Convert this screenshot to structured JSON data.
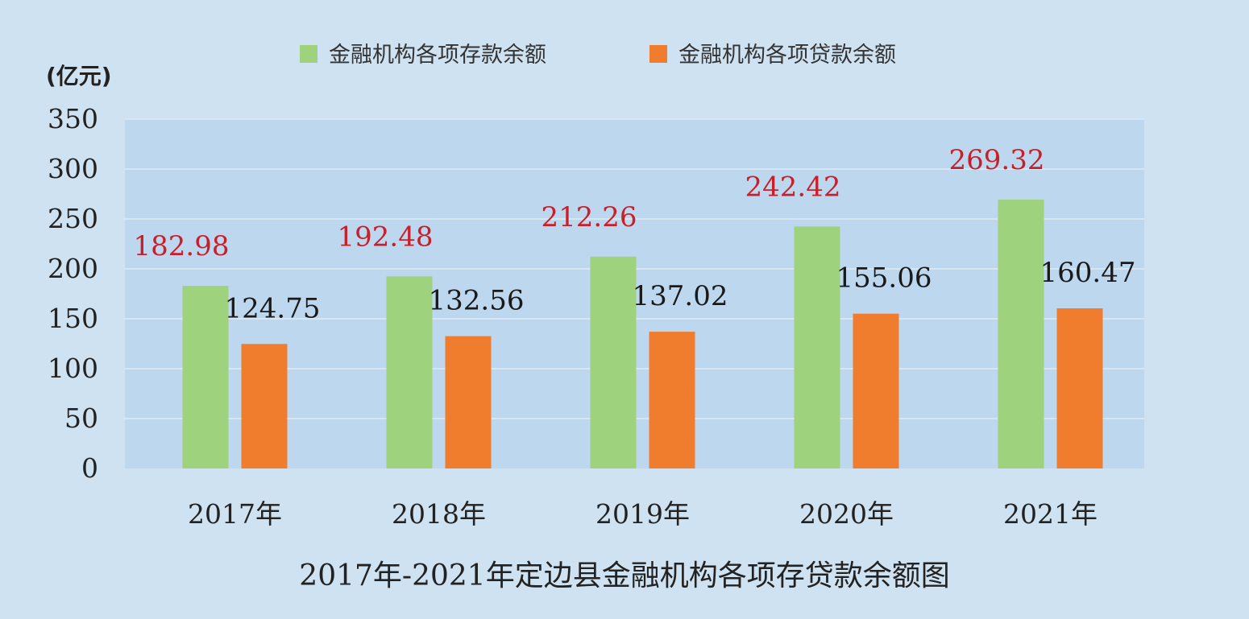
{
  "chart_data": {
    "type": "bar",
    "title": "2017年-2021年定边县金融机构各项存贷款余额图",
    "ylabel": "(亿元)",
    "xlabel": "",
    "categories": [
      "2017年",
      "2018年",
      "2019年",
      "2020年",
      "2021年"
    ],
    "yticks": [
      "0",
      "50",
      "100",
      "150",
      "200",
      "250",
      "300",
      "350"
    ],
    "ylim": [
      0,
      350
    ],
    "grid": true,
    "legend_position": "top-center",
    "series": [
      {
        "name": "金融机构各项存款余额",
        "color": "#9fd27c",
        "label_color": "#c8202a",
        "values": [
          182.98,
          192.48,
          212.26,
          242.42,
          269.32
        ],
        "labels": [
          "182.98",
          "192.48",
          "212.26",
          "242.42",
          "269.32"
        ]
      },
      {
        "name": "金融机构各项贷款余额",
        "color": "#ef7d2d",
        "label_color": "#1a1a1a",
        "values": [
          124.75,
          132.56,
          137.02,
          155.06,
          160.47
        ],
        "labels": [
          "124.75",
          "132.56",
          "137.02",
          "155.06",
          "160.47"
        ]
      }
    ],
    "plot_background": "#bcd7ee",
    "gridline_color": "#d6e6f3"
  }
}
